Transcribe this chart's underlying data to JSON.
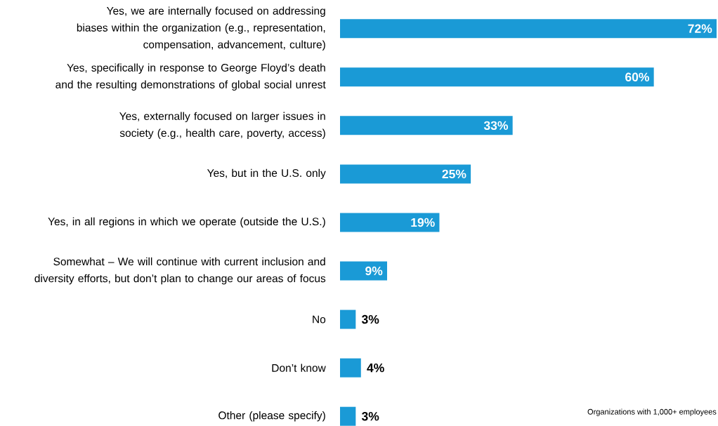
{
  "chart_data": {
    "type": "bar",
    "orientation": "horizontal",
    "categories": [
      "Yes, we are internally focused on addressing biases within the organization (e.g., representation, compensation, advancement, culture)",
      "Yes, specifically in response to George Floyd’s death and the resulting demonstrations of global social unrest",
      "Yes, externally focused on larger issues in society (e.g., health care, poverty, access)",
      "Yes, but in the U.S. only",
      "Yes, in all regions in which we operate (outside the U.S.)",
      "Somewhat – We will continue with current inclusion and diversity efforts, but don’t plan to change our areas of focus",
      "No",
      "Don’t know",
      "Other (please specify)"
    ],
    "values": [
      72,
      60,
      33,
      25,
      19,
      9,
      3,
      4,
      3
    ],
    "value_labels": [
      "72%",
      "60%",
      "33%",
      "25%",
      "19%",
      "9%",
      "3%",
      "4%",
      "3%"
    ],
    "color": "#1a9ad6",
    "annotations": [
      "Organizations with 1,000+ employees"
    ]
  }
}
